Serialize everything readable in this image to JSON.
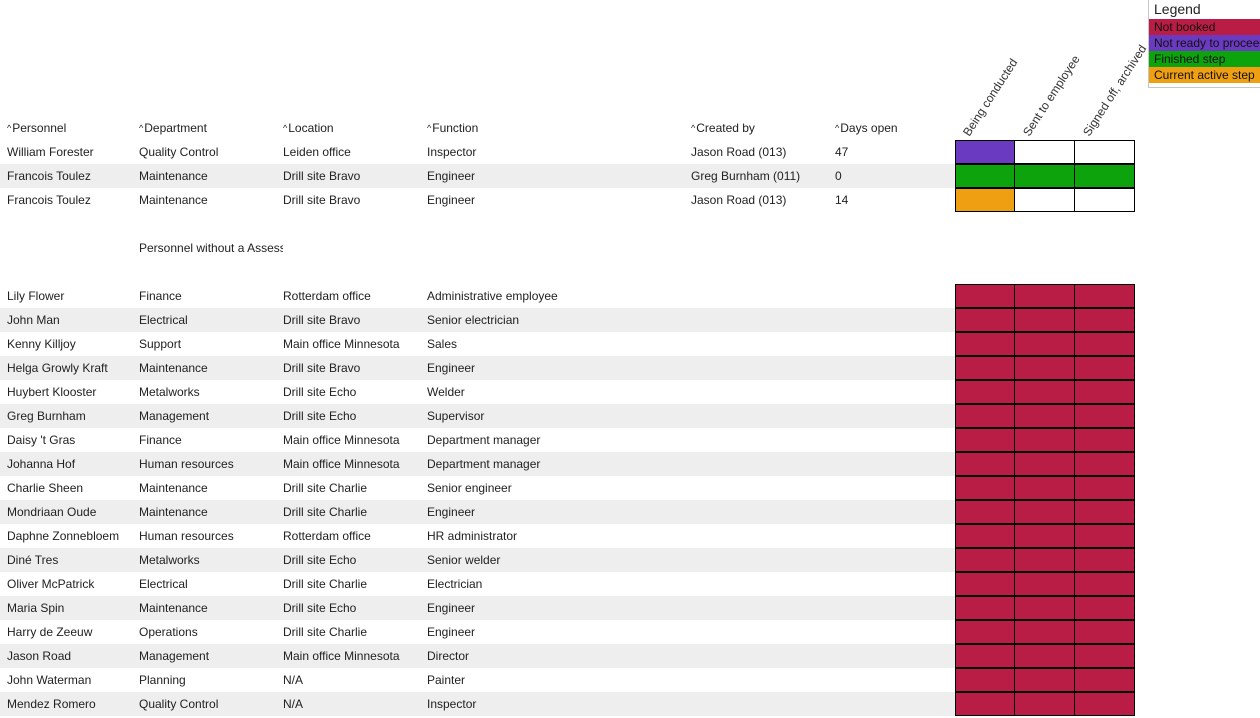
{
  "legend": {
    "title": "Legend",
    "items": [
      {
        "label": "Not booked",
        "color": "#b91c44"
      },
      {
        "label": "Not ready to proceed",
        "color": "#6a3bc0"
      },
      {
        "label": "Finished step",
        "color": "#0ca30c"
      },
      {
        "label": "Current active step",
        "color": "#ef9f12"
      }
    ]
  },
  "step_headers": [
    "Being conducted",
    "Sent to employee",
    "Signed off, archived"
  ],
  "columns": {
    "personnel": "Personnel",
    "department": "Department",
    "location": "Location",
    "function": "Function",
    "created_by": "Created by",
    "days_open": "Days open",
    "sort_icon": "caret-up-icon"
  },
  "colors": {
    "not_booked": "#b91c44",
    "not_ready": "#6a3bc0",
    "finished": "#0ca30c",
    "active": "#ef9f12",
    "empty": "#ffffff",
    "row_alt": "#eeeeee"
  },
  "assessments": [
    {
      "personnel": "William Forester",
      "department": "Quality Control",
      "location": "Leiden office",
      "function": "Inspector",
      "created_by": "Jason Road (013)",
      "days_open": "47",
      "steps": [
        "not_ready",
        "empty",
        "empty"
      ]
    },
    {
      "personnel": "Francois Toulez",
      "department": "Maintenance",
      "location": "Drill site Bravo",
      "function": "Engineer",
      "created_by": "Greg Burnham (011)",
      "days_open": "0",
      "steps": [
        "finished",
        "finished",
        "finished"
      ]
    },
    {
      "personnel": "Francois Toulez",
      "department": "Maintenance",
      "location": "Drill site Bravo",
      "function": "Engineer",
      "created_by": "Jason Road (013)",
      "days_open": "14",
      "steps": [
        "active",
        "empty",
        "empty"
      ]
    }
  ],
  "section_label": "Personnel without a Assessment",
  "without_assessment": [
    {
      "personnel": "Lily Flower",
      "department": "Finance",
      "location": "Rotterdam office",
      "function": "Administrative employee"
    },
    {
      "personnel": "John Man",
      "department": "Electrical",
      "location": "Drill site Bravo",
      "function": "Senior electrician"
    },
    {
      "personnel": "Kenny Killjoy",
      "department": "Support",
      "location": "Main office Minnesota",
      "function": "Sales"
    },
    {
      "personnel": "Helga Growly Kraft",
      "department": "Maintenance",
      "location": "Drill site Bravo",
      "function": "Engineer"
    },
    {
      "personnel": "Huybert Klooster",
      "department": "Metalworks",
      "location": "Drill site Echo",
      "function": "Welder"
    },
    {
      "personnel": "Greg Burnham",
      "department": "Management",
      "location": "Drill site Echo",
      "function": "Supervisor"
    },
    {
      "personnel": "Daisy 't Gras",
      "department": "Finance",
      "location": "Main office Minnesota",
      "function": "Department manager"
    },
    {
      "personnel": "Johanna Hof",
      "department": "Human resources",
      "location": "Main office Minnesota",
      "function": "Department manager"
    },
    {
      "personnel": "Charlie Sheen",
      "department": "Maintenance",
      "location": "Drill site Charlie",
      "function": "Senior engineer"
    },
    {
      "personnel": "Mondriaan Oude",
      "department": "Maintenance",
      "location": "Drill site Charlie",
      "function": "Engineer"
    },
    {
      "personnel": "Daphne Zonnebloem",
      "department": "Human resources",
      "location": "Rotterdam office",
      "function": "HR administrator"
    },
    {
      "personnel": "Diné Tres",
      "department": "Metalworks",
      "location": "Drill site Echo",
      "function": "Senior welder"
    },
    {
      "personnel": "Oliver McPatrick",
      "department": "Electrical",
      "location": "Drill site Charlie",
      "function": "Electrician"
    },
    {
      "personnel": "Maria Spin",
      "department": "Maintenance",
      "location": "Drill site Echo",
      "function": "Engineer"
    },
    {
      "personnel": "Harry de Zeeuw",
      "department": "Operations",
      "location": "Drill site Charlie",
      "function": "Engineer"
    },
    {
      "personnel": "Jason Road",
      "department": "Management",
      "location": "Main office Minnesota",
      "function": "Director"
    },
    {
      "personnel": "John Waterman",
      "department": "Planning",
      "location": "N/A",
      "function": "Painter"
    },
    {
      "personnel": "Mendez Romero",
      "department": "Quality Control",
      "location": "N/A",
      "function": "Inspector"
    }
  ]
}
